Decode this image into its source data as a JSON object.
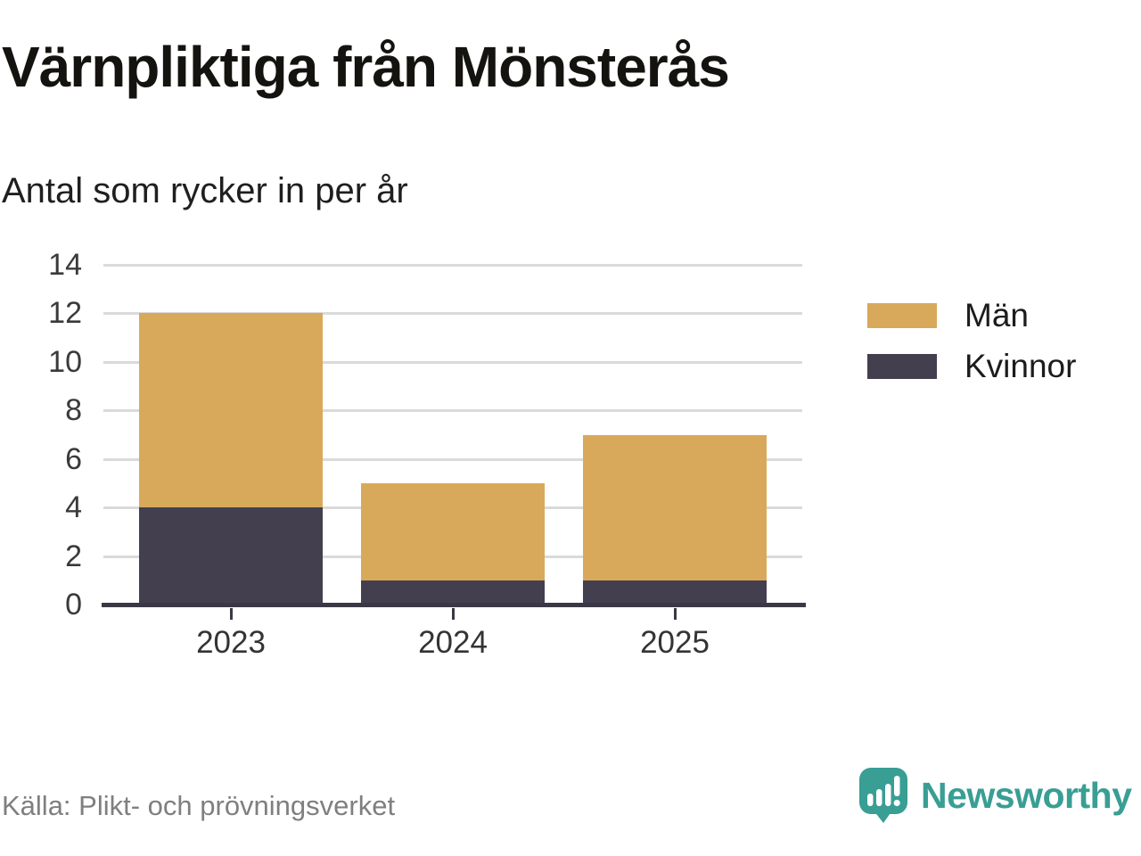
{
  "header": {
    "title": "Värnpliktiga från Mönsterås",
    "subtitle": "Antal som rycker in per år"
  },
  "footer": {
    "source": "Källa: Plikt- och prövningsverket"
  },
  "brand": {
    "name": "Newsworthy",
    "color": "#399e94",
    "icon": "speech-bubble-bar-chart-exclamation"
  },
  "colors": {
    "background": "#ffffff",
    "gridline": "#dadada",
    "axis": "#3b3845",
    "men_gold": "#d8a95a",
    "kvinnor_dark": "#433f4f"
  },
  "chart_data": {
    "type": "bar",
    "stacked": true,
    "title": "Värnpliktiga från Mönsterås",
    "subtitle": "Antal som rycker in per år",
    "categories": [
      "2023",
      "2024",
      "2025"
    ],
    "series": [
      {
        "name": "Män",
        "color": "#d8a95a",
        "values": [
          8,
          4,
          6
        ]
      },
      {
        "name": "Kvinnor",
        "color": "#433f4f",
        "values": [
          4,
          1,
          1
        ]
      }
    ],
    "totals": [
      12,
      5,
      7
    ],
    "xlabel": "",
    "ylabel": "",
    "ylim": [
      0,
      14
    ],
    "yticks": [
      0,
      2,
      4,
      6,
      8,
      10,
      12,
      14
    ],
    "grid": true,
    "legend_position": "right",
    "source": "Källa: Plikt- och prövningsverket"
  }
}
